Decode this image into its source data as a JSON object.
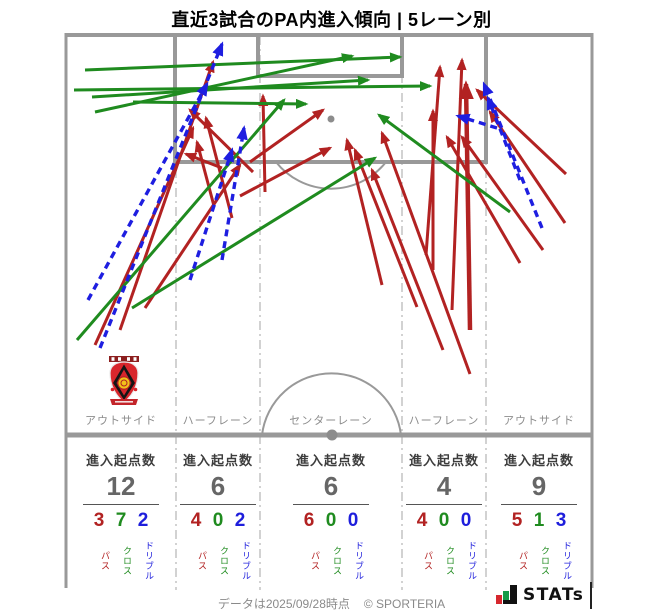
{
  "title": "直近3試合のPA内進入傾向 | 5レーン別",
  "metric_label": "進入起点数",
  "arrow_type_labels": {
    "pass": "パス",
    "cross": "クロス",
    "dribble": "ドリブル"
  },
  "lanes": [
    {
      "label": "アウトサイド",
      "count": "12",
      "pass": "3",
      "cross": "7",
      "dribble": "2"
    },
    {
      "label": "ハーフレーン",
      "count": "6",
      "pass": "4",
      "cross": "0",
      "dribble": "2"
    },
    {
      "label": "センターレーン",
      "count": "6",
      "pass": "6",
      "cross": "0",
      "dribble": "0"
    },
    {
      "label": "ハーフレーン",
      "count": "4",
      "pass": "4",
      "cross": "0",
      "dribble": "0"
    },
    {
      "label": "アウトサイド",
      "count": "9",
      "pass": "5",
      "cross": "1",
      "dribble": "3"
    }
  ],
  "footer": {
    "note": "データは2025/09/28時点",
    "copyright": "© SPORTERIA",
    "brand": "STATs"
  },
  "colors": {
    "pass": "#b22222",
    "cross": "#1f8b1f",
    "dribble": "#1e1ee0",
    "pitch_line": "#999999",
    "divider": "#b3b3b3"
  },
  "chart_data": {
    "type": "pitch-arrow-map",
    "title": "直近3試合のPA内進入傾向 | 5レーン別",
    "lane_summary": {
      "categories": [
        "アウトサイド",
        "ハーフレーン",
        "センターレーン",
        "ハーフレーン",
        "アウトサイド"
      ],
      "entry_origin_counts": [
        12,
        6,
        6,
        4,
        9
      ],
      "series": [
        {
          "name": "パス",
          "values": [
            3,
            4,
            6,
            4,
            5
          ]
        },
        {
          "name": "クロス",
          "values": [
            7,
            0,
            0,
            0,
            1
          ]
        },
        {
          "name": "ドリブル",
          "values": [
            2,
            2,
            0,
            0,
            3
          ]
        }
      ]
    },
    "arrows": [
      {
        "type": "pass",
        "from": [
          120,
          330
        ],
        "to": [
          213,
          62
        ]
      },
      {
        "type": "pass",
        "from": [
          95,
          345
        ],
        "to": [
          193,
          128
        ]
      },
      {
        "type": "pass",
        "from": [
          145,
          308
        ],
        "to": [
          240,
          165
        ]
      },
      {
        "type": "pass",
        "from": [
          253,
          172
        ],
        "to": [
          190,
          110
        ]
      },
      {
        "type": "pass",
        "from": [
          222,
          168
        ],
        "to": [
          186,
          154
        ]
      },
      {
        "type": "pass",
        "from": [
          214,
          206
        ],
        "to": [
          197,
          142
        ]
      },
      {
        "type": "pass",
        "from": [
          232,
          218
        ],
        "to": [
          206,
          118
        ]
      },
      {
        "type": "pass",
        "from": [
          265,
          192
        ],
        "to": [
          263,
          96
        ]
      },
      {
        "type": "pass",
        "from": [
          240,
          196
        ],
        "to": [
          330,
          148
        ]
      },
      {
        "type": "pass",
        "from": [
          250,
          162
        ],
        "to": [
          323,
          110
        ]
      },
      {
        "type": "pass",
        "from": [
          382,
          285
        ],
        "to": [
          347,
          140
        ]
      },
      {
        "type": "pass",
        "from": [
          417,
          307
        ],
        "to": [
          355,
          150
        ]
      },
      {
        "type": "pass",
        "from": [
          443,
          350
        ],
        "to": [
          372,
          170
        ]
      },
      {
        "type": "pass",
        "from": [
          470,
          374
        ],
        "to": [
          382,
          133
        ]
      },
      {
        "type": "pass",
        "from": [
          426,
          255
        ],
        "to": [
          440,
          67
        ]
      },
      {
        "type": "pass",
        "from": [
          452,
          310
        ],
        "to": [
          462,
          60
        ]
      },
      {
        "type": "pass",
        "from": [
          470,
          330
        ],
        "to": [
          466,
          84
        ],
        "bold": true
      },
      {
        "type": "pass",
        "from": [
          433,
          270
        ],
        "to": [
          433,
          111
        ]
      },
      {
        "type": "pass",
        "from": [
          566,
          174
        ],
        "to": [
          477,
          90
        ]
      },
      {
        "type": "pass",
        "from": [
          565,
          223
        ],
        "to": [
          490,
          112
        ]
      },
      {
        "type": "pass",
        "from": [
          543,
          250
        ],
        "to": [
          462,
          137
        ]
      },
      {
        "type": "pass",
        "from": [
          520,
          263
        ],
        "to": [
          447,
          137
        ]
      },
      {
        "type": "cross",
        "from": [
          95,
          112
        ],
        "to": [
          352,
          56
        ]
      },
      {
        "type": "cross",
        "from": [
          85,
          70
        ],
        "to": [
          400,
          57
        ]
      },
      {
        "type": "cross",
        "from": [
          74,
          90
        ],
        "to": [
          430,
          86
        ]
      },
      {
        "type": "cross",
        "from": [
          133,
          102
        ],
        "to": [
          306,
          104
        ]
      },
      {
        "type": "cross",
        "from": [
          132,
          308
        ],
        "to": [
          375,
          158
        ]
      },
      {
        "type": "cross",
        "from": [
          77,
          340
        ],
        "to": [
          284,
          100
        ]
      },
      {
        "type": "cross",
        "from": [
          92,
          97
        ],
        "to": [
          368,
          80
        ]
      },
      {
        "type": "cross",
        "from": [
          510,
          212
        ],
        "to": [
          379,
          115
        ]
      },
      {
        "type": "dribble",
        "from": [
          100,
          348
        ],
        "to": [
          222,
          44
        ]
      },
      {
        "type": "dribble",
        "from": [
          88,
          300
        ],
        "to": [
          207,
          84
        ]
      },
      {
        "type": "dribble",
        "from": [
          222,
          260
        ],
        "to": [
          244,
          128
        ]
      },
      {
        "type": "dribble",
        "from": [
          190,
          280
        ],
        "to": [
          232,
          150
        ]
      },
      {
        "type": "dribble",
        "from": [
          542,
          228
        ],
        "to": [
          484,
          84
        ]
      },
      {
        "type": "dribble",
        "from": [
          497,
          128
        ],
        "to": [
          458,
          116
        ]
      },
      {
        "type": "dribble",
        "from": [
          520,
          180
        ],
        "to": [
          488,
          98
        ]
      }
    ]
  }
}
